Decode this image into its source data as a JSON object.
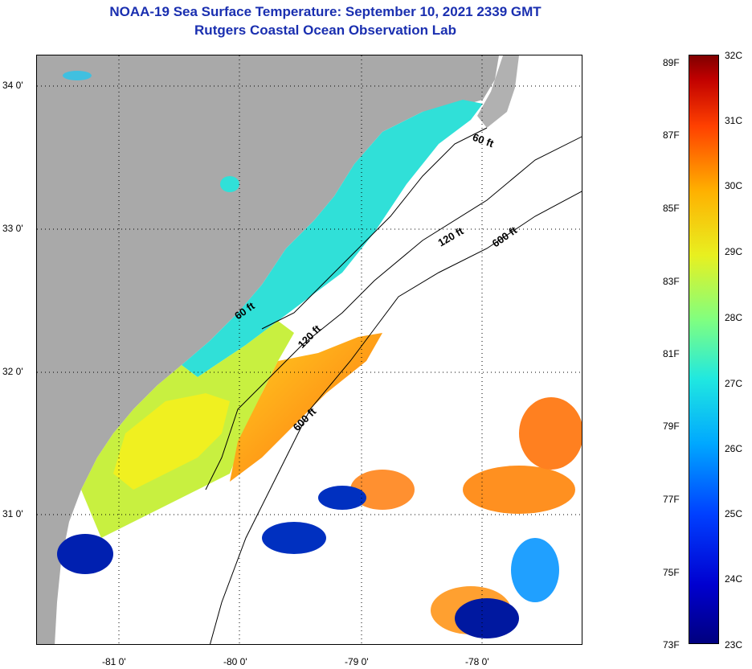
{
  "title": {
    "line1": "NOAA-19 Sea Surface Temperature:  September 10, 2021 2339 GMT",
    "line2": "Rutgers Coastal Ocean Observation Lab"
  },
  "map": {
    "lat_ticks": [
      "34 0'",
      "33 0'",
      "32 0'",
      "31 0'"
    ],
    "lon_ticks": [
      "-81 0'",
      "-80 0'",
      "-79 0'",
      "-78 0'"
    ],
    "contour_labels": [
      "60 ft",
      "120 ft",
      "600 ft",
      "60 ft",
      "120 ft",
      "600 ft"
    ],
    "land_color": "#a9a9a9",
    "cloud_color": "#ffffff"
  },
  "colorbar": {
    "fahrenheit": [
      "89F",
      "87F",
      "85F",
      "83F",
      "81F",
      "79F",
      "77F",
      "75F",
      "73F"
    ],
    "celsius": [
      "32C",
      "31C",
      "30C",
      "29C",
      "28C",
      "27C",
      "26C",
      "25C",
      "24C",
      "23C"
    ]
  }
}
